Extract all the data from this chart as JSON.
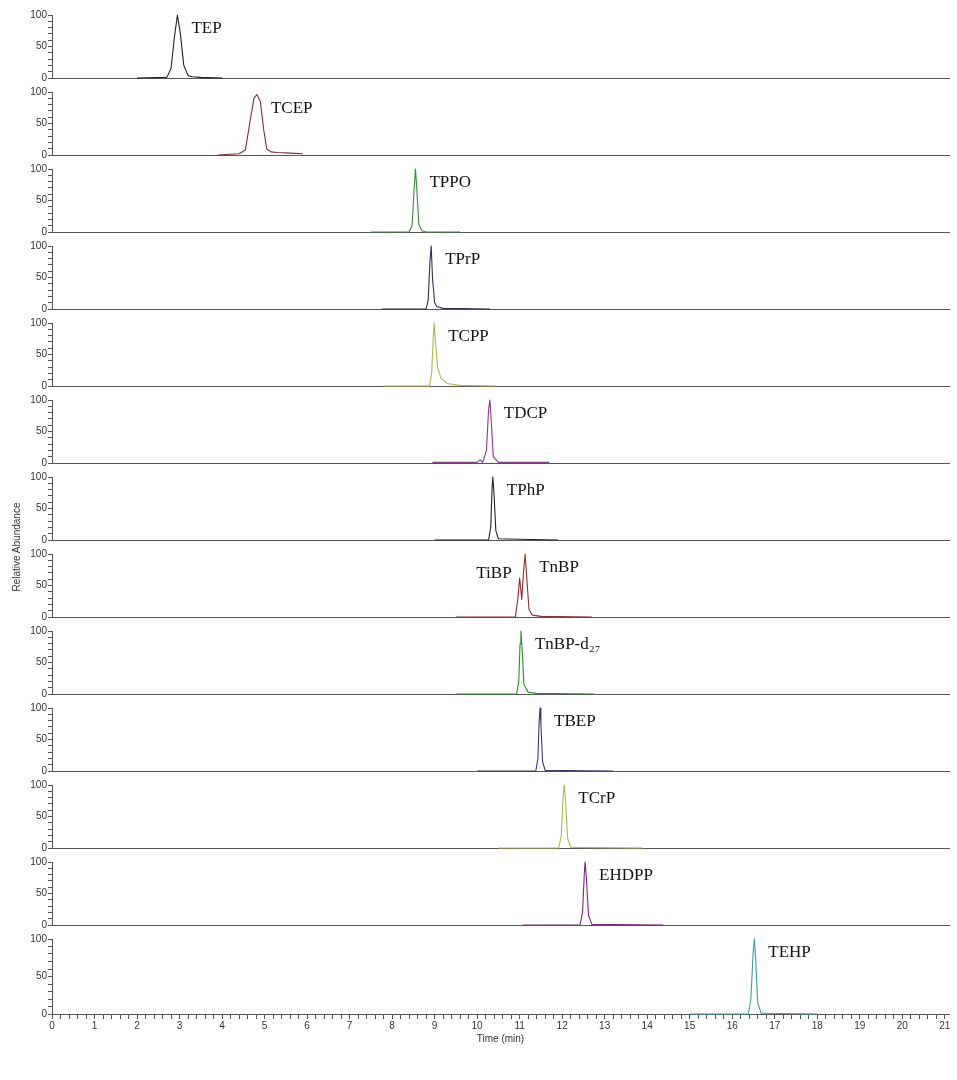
{
  "chart_data": [
    {
      "type": "line",
      "xlim": [
        0,
        21.1
      ],
      "ylim": [
        0,
        100
      ],
      "yticks": [
        0,
        {
          "value": 10,
          "label": null
        },
        {
          "value": 20,
          "label": null
        },
        {
          "value": 30,
          "label": null
        },
        {
          "value": 40,
          "label": null
        },
        50,
        {
          "value": 60,
          "label": null
        },
        {
          "value": 70,
          "label": null
        },
        {
          "value": 80,
          "label": null
        },
        {
          "value": 90,
          "label": null
        },
        100
      ],
      "tick_labels": "y",
      "series": [
        {
          "color": "#222222",
          "x": [
            2.0,
            2.7,
            2.8,
            2.88,
            2.95,
            3.02,
            3.1,
            3.2,
            3.3,
            3.5,
            4.0
          ],
          "values": [
            0,
            1,
            15,
            65,
            100,
            70,
            20,
            4,
            2,
            1,
            0
          ]
        }
      ],
      "annotations": [
        {
          "text": "TEP",
          "x": 2.95,
          "y": 100
        }
      ]
    },
    {
      "type": "line",
      "xlim": [
        0,
        21.1
      ],
      "ylim": [
        0,
        100
      ],
      "yticks": [
        0,
        {
          "value": 10,
          "label": null
        },
        {
          "value": 20,
          "label": null
        },
        {
          "value": 30,
          "label": null
        },
        {
          "value": 40,
          "label": null
        },
        50,
        {
          "value": 60,
          "label": null
        },
        {
          "value": 70,
          "label": null
        },
        {
          "value": 80,
          "label": null
        },
        {
          "value": 90,
          "label": null
        },
        100
      ],
      "tick_labels": "y",
      "series": [
        {
          "color": "#7a3030",
          "x": [
            3.9,
            4.4,
            4.55,
            4.65,
            4.75,
            4.82,
            4.9,
            4.98,
            5.05,
            5.15,
            5.3,
            5.6,
            5.9
          ],
          "values": [
            0,
            2,
            8,
            50,
            90,
            96,
            85,
            40,
            10,
            5,
            4,
            3,
            2
          ]
        }
      ],
      "annotations": [
        {
          "text": "TCEP",
          "x": 4.82,
          "y": 96
        }
      ]
    },
    {
      "type": "line",
      "xlim": [
        0,
        21.1
      ],
      "ylim": [
        0,
        100
      ],
      "yticks": [
        0,
        {
          "value": 10,
          "label": null
        },
        {
          "value": 20,
          "label": null
        },
        {
          "value": 30,
          "label": null
        },
        {
          "value": 40,
          "label": null
        },
        50,
        {
          "value": 60,
          "label": null
        },
        {
          "value": 70,
          "label": null
        },
        {
          "value": 80,
          "label": null
        },
        {
          "value": 90,
          "label": null
        },
        100
      ],
      "tick_labels": "y",
      "series": [
        {
          "color": "#3c8a3c",
          "x": [
            7.5,
            8.4,
            8.47,
            8.52,
            8.55,
            8.58,
            8.63,
            8.7,
            8.8,
            9.6
          ],
          "values": [
            0,
            0,
            10,
            70,
            100,
            70,
            12,
            2,
            0,
            0
          ]
        }
      ],
      "annotations": [
        {
          "text": "TPPO",
          "x": 8.55,
          "y": 100
        }
      ]
    },
    {
      "type": "line",
      "xlim": [
        0,
        21.1
      ],
      "ylim": [
        0,
        100
      ],
      "yticks": [
        0,
        {
          "value": 10,
          "label": null
        },
        {
          "value": 20,
          "label": null
        },
        {
          "value": 30,
          "label": null
        },
        {
          "value": 40,
          "label": null
        },
        50,
        {
          "value": 60,
          "label": null
        },
        {
          "value": 70,
          "label": null
        },
        {
          "value": 80,
          "label": null
        },
        {
          "value": 90,
          "label": null
        },
        100
      ],
      "tick_labels": "y",
      "series": [
        {
          "color": "#303050",
          "x": [
            7.75,
            8.8,
            8.85,
            8.89,
            8.92,
            8.95,
            9.0,
            9.05,
            9.2,
            10.3
          ],
          "values": [
            0,
            0,
            15,
            75,
            100,
            50,
            10,
            4,
            1,
            0
          ]
        }
      ],
      "annotations": [
        {
          "text": "TPrP",
          "x": 8.92,
          "y": 100
        }
      ]
    },
    {
      "type": "line",
      "xlim": [
        0,
        21.1
      ],
      "ylim": [
        0,
        100
      ],
      "yticks": [
        0,
        {
          "value": 10,
          "label": null
        },
        {
          "value": 20,
          "label": null
        },
        {
          "value": 30,
          "label": null
        },
        {
          "value": 40,
          "label": null
        },
        50,
        {
          "value": 60,
          "label": null
        },
        {
          "value": 70,
          "label": null
        },
        {
          "value": 80,
          "label": null
        },
        {
          "value": 90,
          "label": null
        },
        100
      ],
      "tick_labels": "y",
      "series": [
        {
          "color": "#b5b54a",
          "x": [
            7.8,
            8.88,
            8.93,
            8.97,
            8.99,
            9.02,
            9.07,
            9.15,
            9.3,
            9.6,
            10.45
          ],
          "values": [
            0,
            0,
            20,
            80,
            100,
            70,
            30,
            12,
            4,
            1,
            0
          ]
        }
      ],
      "annotations": [
        {
          "text": "TCPP",
          "x": 8.99,
          "y": 100
        }
      ]
    },
    {
      "type": "line",
      "xlim": [
        0,
        21.1
      ],
      "ylim": [
        0,
        100
      ],
      "yticks": [
        0,
        {
          "value": 10,
          "label": null
        },
        {
          "value": 20,
          "label": null
        },
        {
          "value": 30,
          "label": null
        },
        {
          "value": 40,
          "label": null
        },
        50,
        {
          "value": 60,
          "label": null
        },
        {
          "value": 70,
          "label": null
        },
        {
          "value": 80,
          "label": null
        },
        {
          "value": 90,
          "label": null
        },
        100
      ],
      "tick_labels": "y",
      "series": [
        {
          "color": "#8a3a8a",
          "x": [
            8.95,
            10.0,
            10.07,
            10.13,
            10.22,
            10.27,
            10.3,
            10.33,
            10.38,
            10.5,
            11.7
          ],
          "values": [
            1,
            1,
            5,
            1,
            20,
            85,
            100,
            70,
            10,
            1,
            1
          ]
        }
      ],
      "annotations": [
        {
          "text": "TDCP",
          "x": 10.3,
          "y": 100
        }
      ]
    },
    {
      "type": "line",
      "xlim": [
        0,
        21.1
      ],
      "ylim": [
        0,
        100
      ],
      "yticks": [
        0,
        {
          "value": 10,
          "label": null
        },
        {
          "value": 20,
          "label": null
        },
        {
          "value": 30,
          "label": null
        },
        {
          "value": 40,
          "label": null
        },
        50,
        {
          "value": 60,
          "label": null
        },
        {
          "value": 70,
          "label": null
        },
        {
          "value": 80,
          "label": null
        },
        {
          "value": 90,
          "label": null
        },
        100
      ],
      "tick_labels": "y",
      "ylabel": "Relative Abundance",
      "series": [
        {
          "color": "#222222",
          "x": [
            9.0,
            10.27,
            10.32,
            10.35,
            10.37,
            10.4,
            10.44,
            10.5,
            11.9
          ],
          "values": [
            0,
            0,
            20,
            80,
            100,
            70,
            15,
            2,
            0
          ]
        }
      ],
      "annotations": [
        {
          "text": "TPhP",
          "x": 10.37,
          "y": 100
        }
      ]
    },
    {
      "type": "line",
      "xlim": [
        0,
        21.1
      ],
      "ylim": [
        0,
        100
      ],
      "yticks": [
        0,
        {
          "value": 10,
          "label": null
        },
        {
          "value": 20,
          "label": null
        },
        {
          "value": 30,
          "label": null
        },
        {
          "value": 40,
          "label": null
        },
        50,
        {
          "value": 60,
          "label": null
        },
        {
          "value": 70,
          "label": null
        },
        {
          "value": 80,
          "label": null
        },
        {
          "value": 90,
          "label": null
        },
        100
      ],
      "tick_labels": "y",
      "series": [
        {
          "color": "#8a3030",
          "x": [
            9.5,
            10.9,
            10.96,
            11.0,
            11.05,
            11.09,
            11.13,
            11.17,
            11.22,
            11.3,
            11.5,
            12.7
          ],
          "values": [
            0,
            0,
            30,
            62,
            28,
            70,
            100,
            60,
            12,
            3,
            1,
            0
          ]
        }
      ],
      "annotations": [
        {
          "text": "TiBP",
          "x": 11.0,
          "y": 62
        },
        {
          "text": "TnBP",
          "x": 11.13,
          "y": 100
        }
      ]
    },
    {
      "type": "line",
      "xlim": [
        0,
        21.1
      ],
      "ylim": [
        0,
        100
      ],
      "yticks": [
        0,
        {
          "value": 10,
          "label": null
        },
        {
          "value": 20,
          "label": null
        },
        {
          "value": 30,
          "label": null
        },
        {
          "value": 40,
          "label": null
        },
        50,
        {
          "value": 60,
          "label": null
        },
        {
          "value": 70,
          "label": null
        },
        {
          "value": 80,
          "label": null
        },
        {
          "value": 90,
          "label": null
        },
        100
      ],
      "tick_labels": "y",
      "series": [
        {
          "color": "#2e8b2e",
          "x": [
            9.5,
            10.93,
            10.98,
            11.01,
            11.03,
            11.06,
            11.1,
            11.2,
            11.4,
            12.75
          ],
          "values": [
            0,
            0,
            20,
            80,
            100,
            70,
            15,
            3,
            1,
            0
          ]
        }
      ],
      "annotations": [
        {
          "text": "TnBP-d₂₇",
          "x": 11.03,
          "y": 100
        }
      ]
    },
    {
      "type": "line",
      "xlim": [
        0,
        21.1
      ],
      "ylim": [
        0,
        100
      ],
      "yticks": [
        0,
        {
          "value": 10,
          "label": null
        },
        {
          "value": 20,
          "label": null
        },
        {
          "value": 30,
          "label": null
        },
        {
          "value": 40,
          "label": null
        },
        50,
        {
          "value": 60,
          "label": null
        },
        {
          "value": 70,
          "label": null
        },
        {
          "value": 80,
          "label": null
        },
        {
          "value": 90,
          "label": null
        },
        100
      ],
      "tick_labels": "y",
      "series": [
        {
          "color": "#3a3a6a",
          "x": [
            10.0,
            11.38,
            11.43,
            11.46,
            11.48,
            11.5,
            11.54,
            11.6,
            13.2
          ],
          "values": [
            0,
            0,
            20,
            80,
            100,
            75,
            15,
            1,
            0
          ]
        }
      ],
      "annotations": [
        {
          "text": "TBEP",
          "x": 11.48,
          "y": 100
        }
      ]
    },
    {
      "type": "line",
      "xlim": [
        0,
        21.1
      ],
      "ylim": [
        0,
        100
      ],
      "yticks": [
        0,
        {
          "value": 10,
          "label": null
        },
        {
          "value": 20,
          "label": null
        },
        {
          "value": 30,
          "label": null
        },
        {
          "value": 40,
          "label": null
        },
        50,
        {
          "value": 60,
          "label": null
        },
        {
          "value": 70,
          "label": null
        },
        {
          "value": 80,
          "label": null
        },
        {
          "value": 90,
          "label": null
        },
        100
      ],
      "tick_labels": "y",
      "series": [
        {
          "color": "#b5b550",
          "x": [
            10.5,
            11.92,
            11.98,
            12.02,
            12.05,
            12.08,
            12.13,
            12.2,
            13.9
          ],
          "values": [
            0,
            0,
            20,
            80,
            100,
            75,
            15,
            1,
            0
          ]
        }
      ],
      "annotations": [
        {
          "text": "TCrP",
          "x": 12.05,
          "y": 100
        }
      ]
    },
    {
      "type": "line",
      "xlim": [
        0,
        21.1
      ],
      "ylim": [
        0,
        100
      ],
      "yticks": [
        0,
        {
          "value": 10,
          "label": null
        },
        {
          "value": 20,
          "label": null
        },
        {
          "value": 30,
          "label": null
        },
        {
          "value": 40,
          "label": null
        },
        50,
        {
          "value": 60,
          "label": null
        },
        {
          "value": 70,
          "label": null
        },
        {
          "value": 80,
          "label": null
        },
        {
          "value": 90,
          "label": null
        },
        100
      ],
      "tick_labels": "y",
      "series": [
        {
          "color": "#7a2a7a",
          "x": [
            11.08,
            12.42,
            12.48,
            12.52,
            12.54,
            12.57,
            12.62,
            12.7,
            14.38
          ],
          "values": [
            0,
            0,
            20,
            80,
            100,
            75,
            15,
            1,
            0
          ]
        }
      ],
      "annotations": [
        {
          "text": "EHDPP",
          "x": 12.54,
          "y": 100
        }
      ]
    },
    {
      "type": "line",
      "xlim": [
        0,
        21.1
      ],
      "ylim": [
        0,
        100
      ],
      "yticks": [
        0,
        {
          "value": 10,
          "label": null
        },
        {
          "value": 20,
          "label": null
        },
        {
          "value": 30,
          "label": null
        },
        {
          "value": 40,
          "label": null
        },
        50,
        {
          "value": 60,
          "label": null
        },
        {
          "value": 70,
          "label": null
        },
        {
          "value": 80,
          "label": null
        },
        {
          "value": 90,
          "label": null
        },
        100
      ],
      "xlabel": "Time (min)",
      "xticks": [
        0,
        {
          "value": 0.2,
          "label": null
        },
        {
          "value": 0.4,
          "label": null
        },
        {
          "value": 0.6,
          "label": null
        },
        {
          "value": 0.8,
          "label": null
        },
        1,
        {
          "value": 1.2,
          "label": null
        },
        {
          "value": 1.4,
          "label": null
        },
        {
          "value": 1.6,
          "label": null
        },
        {
          "value": 1.8,
          "label": null
        },
        2,
        {
          "value": 2.2,
          "label": null
        },
        {
          "value": 2.4,
          "label": null
        },
        {
          "value": 2.6,
          "label": null
        },
        {
          "value": 2.8,
          "label": null
        },
        3,
        {
          "value": 3.2,
          "label": null
        },
        {
          "value": 3.4,
          "label": null
        },
        {
          "value": 3.6,
          "label": null
        },
        {
          "value": 3.8,
          "label": null
        },
        4,
        {
          "value": 4.2,
          "label": null
        },
        {
          "value": 4.4,
          "label": null
        },
        {
          "value": 4.6,
          "label": null
        },
        {
          "value": 4.8,
          "label": null
        },
        5,
        {
          "value": 5.2,
          "label": null
        },
        {
          "value": 5.4,
          "label": null
        },
        {
          "value": 5.6,
          "label": null
        },
        {
          "value": 5.8,
          "label": null
        },
        6,
        {
          "value": 6.2,
          "label": null
        },
        {
          "value": 6.4,
          "label": null
        },
        {
          "value": 6.6,
          "label": null
        },
        {
          "value": 6.8,
          "label": null
        },
        7,
        {
          "value": 7.2,
          "label": null
        },
        {
          "value": 7.4,
          "label": null
        },
        {
          "value": 7.6,
          "label": null
        },
        {
          "value": 7.8,
          "label": null
        },
        8,
        {
          "value": 8.2,
          "label": null
        },
        {
          "value": 8.4,
          "label": null
        },
        {
          "value": 8.6,
          "label": null
        },
        {
          "value": 8.8,
          "label": null
        },
        9,
        {
          "value": 9.2,
          "label": null
        },
        {
          "value": 9.4,
          "label": null
        },
        {
          "value": 9.6,
          "label": null
        },
        {
          "value": 9.8,
          "label": null
        },
        10,
        {
          "value": 10.2,
          "label": null
        },
        {
          "value": 10.4,
          "label": null
        },
        {
          "value": 10.6,
          "label": null
        },
        {
          "value": 10.8,
          "label": null
        },
        11,
        {
          "value": 11.2,
          "label": null
        },
        {
          "value": 11.4,
          "label": null
        },
        {
          "value": 11.6,
          "label": null
        },
        {
          "value": 11.8,
          "label": null
        },
        12,
        {
          "value": 12.2,
          "label": null
        },
        {
          "value": 12.4,
          "label": null
        },
        {
          "value": 12.6,
          "label": null
        },
        {
          "value": 12.8,
          "label": null
        },
        13,
        {
          "value": 13.2,
          "label": null
        },
        {
          "value": 13.4,
          "label": null
        },
        {
          "value": 13.6,
          "label": null
        },
        {
          "value": 13.8,
          "label": null
        },
        14,
        {
          "value": 14.2,
          "label": null
        },
        {
          "value": 14.4,
          "label": null
        },
        {
          "value": 14.6,
          "label": null
        },
        {
          "value": 14.8,
          "label": null
        },
        15,
        {
          "value": 15.2,
          "label": null
        },
        {
          "value": 15.4,
          "label": null
        },
        {
          "value": 15.6,
          "label": null
        },
        {
          "value": 15.8,
          "label": null
        },
        16,
        {
          "value": 16.2,
          "label": null
        },
        {
          "value": 16.4,
          "label": null
        },
        {
          "value": 16.6,
          "label": null
        },
        {
          "value": 16.8,
          "label": null
        },
        17,
        {
          "value": 17.2,
          "label": null
        },
        {
          "value": 17.4,
          "label": null
        },
        {
          "value": 17.6,
          "label": null
        },
        {
          "value": 17.8,
          "label": null
        },
        18,
        {
          "value": 18.2,
          "label": null
        },
        {
          "value": 18.4,
          "label": null
        },
        {
          "value": 18.6,
          "label": null
        },
        {
          "value": 18.8,
          "label": null
        },
        19,
        {
          "value": 19.2,
          "label": null
        },
        {
          "value": 19.4,
          "label": null
        },
        {
          "value": 19.6,
          "label": null
        },
        {
          "value": 19.8,
          "label": null
        },
        20,
        {
          "value": 20.2,
          "label": null
        },
        {
          "value": 20.4,
          "label": null
        },
        {
          "value": 20.6,
          "label": null
        },
        {
          "value": 20.8,
          "label": null
        },
        21
      ],
      "series": [
        {
          "color": "#3aa0a0",
          "x": [
            15.0,
            16.38,
            16.44,
            16.49,
            16.52,
            16.55,
            16.6,
            16.68,
            18.0
          ],
          "values": [
            0,
            0,
            20,
            80,
            100,
            75,
            15,
            1,
            0
          ]
        }
      ],
      "annotations": [
        {
          "text": "TEHP",
          "x": 16.52,
          "y": 100
        }
      ]
    }
  ]
}
